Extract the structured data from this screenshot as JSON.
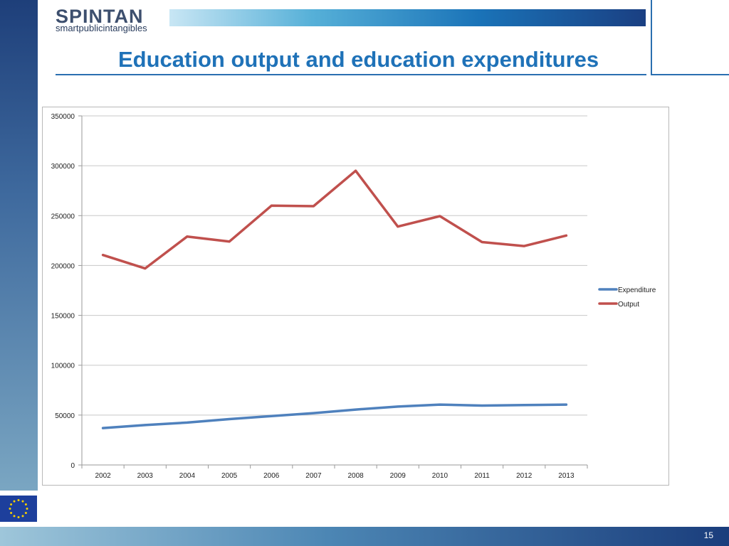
{
  "logo": {
    "main": "SPINTAN",
    "sub": "smartpublicintangibles"
  },
  "slide": {
    "title": "Education output and education expenditures",
    "page_number": "15"
  },
  "colors": {
    "expenditure": "#4f81bd",
    "output": "#c0504d",
    "title": "#1f72b8"
  },
  "chart_data": {
    "type": "line",
    "title": "",
    "xlabel": "",
    "ylabel": "",
    "categories": [
      "2002",
      "2003",
      "2004",
      "2005",
      "2006",
      "2007",
      "2008",
      "2009",
      "2010",
      "2011",
      "2012",
      "2013"
    ],
    "ylim": [
      0,
      350000
    ],
    "yticks": [
      "0",
      "50000",
      "100000",
      "150000",
      "200000",
      "250000",
      "300000",
      "350000"
    ],
    "grid": true,
    "legend_position": "right",
    "series": [
      {
        "name": "Expenditure",
        "color": "#4f81bd",
        "values": [
          37000,
          40000,
          42500,
          46000,
          49000,
          52000,
          55500,
          58500,
          60500,
          59500,
          60000,
          60500
        ]
      },
      {
        "name": "Output",
        "color": "#c0504d",
        "values": [
          210500,
          197000,
          229000,
          224000,
          260000,
          259500,
          295000,
          239000,
          249500,
          223500,
          219500,
          230000
        ]
      }
    ]
  }
}
